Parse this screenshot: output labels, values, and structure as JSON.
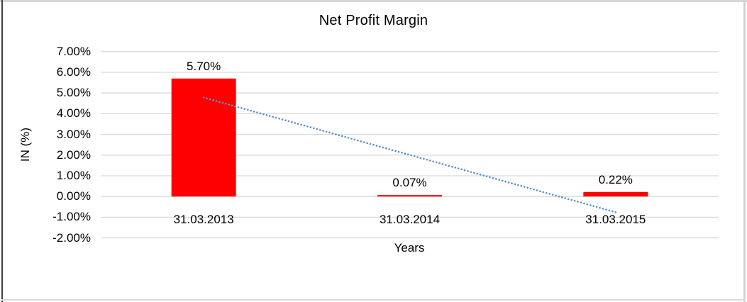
{
  "chart_data": {
    "type": "bar",
    "title": "Net Profit Margin",
    "xlabel": "Years",
    "ylabel": "IN (%)",
    "categories": [
      "31.03.2013",
      "31.03.2014",
      "31.03.2015"
    ],
    "values": [
      5.7,
      0.07,
      0.22
    ],
    "value_labels": [
      "5.70%",
      "0.07%",
      "0.22%"
    ],
    "ylim": [
      -2,
      7
    ],
    "ytick_labels": [
      "7.00%",
      "6.00%",
      "5.00%",
      "4.00%",
      "3.00%",
      "2.00%",
      "1.00%",
      "0.00%",
      "-1.00%",
      "-2.00%"
    ],
    "grid": true,
    "legend": "none",
    "bar_color": "#ff0000",
    "gridline_color": "#d9d9d9",
    "trendline": {
      "type": "linear",
      "style": "dotted",
      "color": "#5b92cf",
      "start_value": 4.78,
      "end_value": -0.76
    }
  }
}
